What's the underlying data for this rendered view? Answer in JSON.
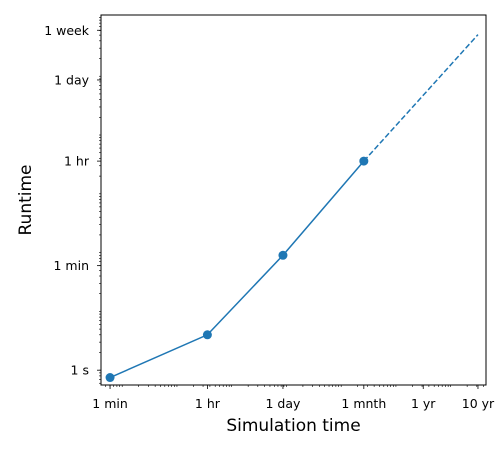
{
  "chart_data": {
    "type": "line",
    "title": "",
    "xlabel": "Simulation time",
    "ylabel": "Runtime",
    "x_scale": "log",
    "y_scale": "log",
    "x_unit": "seconds",
    "y_unit": "seconds",
    "xlim": [
      41,
      442000000
    ],
    "ylim": [
      0.56,
      1100000
    ],
    "x_ticks": [
      {
        "value": 60,
        "label": "1 min"
      },
      {
        "value": 3600,
        "label": "1 hr"
      },
      {
        "value": 86400,
        "label": "1 day"
      },
      {
        "value": 2592000,
        "label": "1 mnth"
      },
      {
        "value": 31536000,
        "label": "1 yr"
      },
      {
        "value": 315360000,
        "label": "10 yr"
      }
    ],
    "y_ticks": [
      {
        "value": 1,
        "label": "1 s"
      },
      {
        "value": 60,
        "label": "1 min"
      },
      {
        "value": 3600,
        "label": "1 hr"
      },
      {
        "value": 86400,
        "label": "1 day"
      },
      {
        "value": 604800,
        "label": "1 week"
      }
    ],
    "series": [
      {
        "style": "solid-with-markers",
        "color": "#1f77b4",
        "points": [
          {
            "x": 60,
            "y": 0.75
          },
          {
            "x": 3600,
            "y": 4
          },
          {
            "x": 86400,
            "y": 90
          },
          {
            "x": 2592000,
            "y": 3600
          }
        ]
      },
      {
        "style": "dashed",
        "color": "#1f77b4",
        "points": [
          {
            "x": 2592000,
            "y": 3600
          },
          {
            "x": 315360000,
            "y": 510000
          }
        ]
      }
    ],
    "grid": false,
    "legend": "none"
  }
}
